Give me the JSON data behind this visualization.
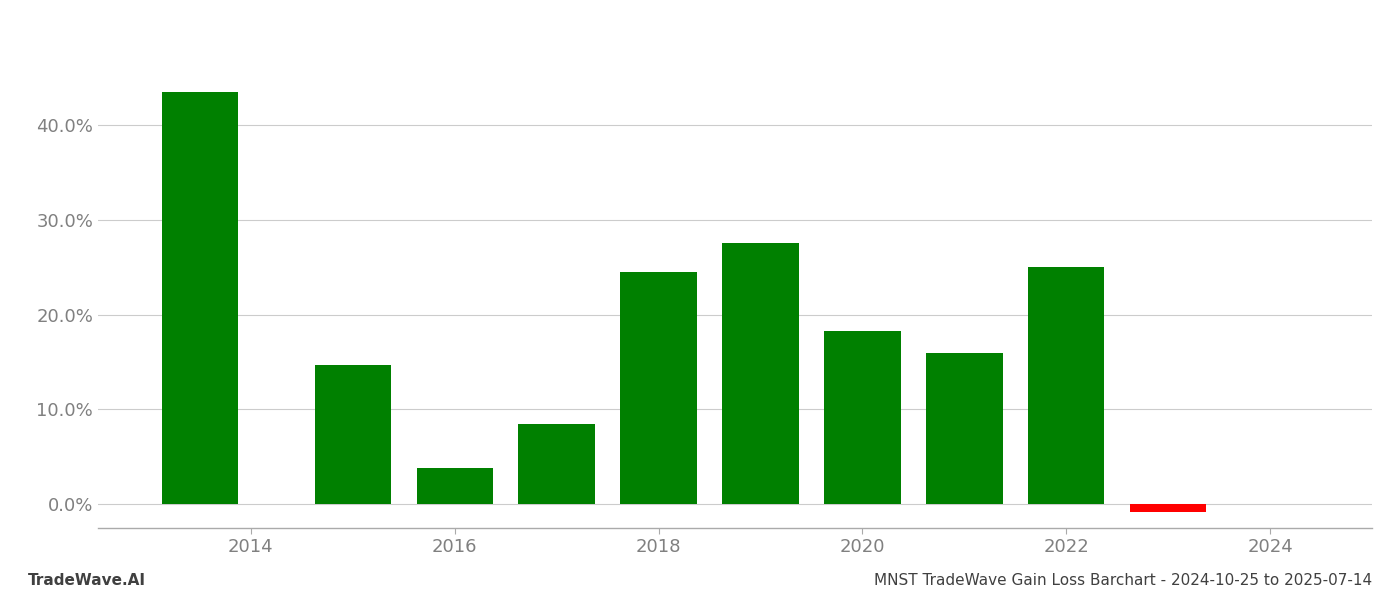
{
  "years": [
    2013.5,
    2015.0,
    2016.0,
    2017.0,
    2018.0,
    2019.0,
    2020.0,
    2021.0,
    2022.0,
    2023.0
  ],
  "values": [
    0.435,
    0.147,
    0.038,
    0.085,
    0.245,
    0.275,
    0.183,
    0.16,
    0.25,
    -0.008
  ],
  "colors": [
    "#008000",
    "#008000",
    "#008000",
    "#008000",
    "#008000",
    "#008000",
    "#008000",
    "#008000",
    "#008000",
    "#ff0000"
  ],
  "bar_width": 0.75,
  "xlim": [
    2012.5,
    2025.0
  ],
  "ylim": [
    -0.025,
    0.5
  ],
  "xticks": [
    2014,
    2016,
    2018,
    2020,
    2022,
    2024
  ],
  "yticks": [
    0.0,
    0.1,
    0.2,
    0.3,
    0.4
  ],
  "ytick_labels": [
    "0.0%",
    "10.0%",
    "20.0%",
    "30.0%",
    "40.0%"
  ],
  "grid_color": "#cccccc",
  "background_color": "#ffffff",
  "bottom_left_text": "TradeWave.AI",
  "bottom_right_text": "MNST TradeWave Gain Loss Barchart - 2024-10-25 to 2025-07-14",
  "text_color": "#808080",
  "bottom_text_color": "#404040",
  "figsize": [
    14.0,
    6.0
  ],
  "dpi": 100
}
